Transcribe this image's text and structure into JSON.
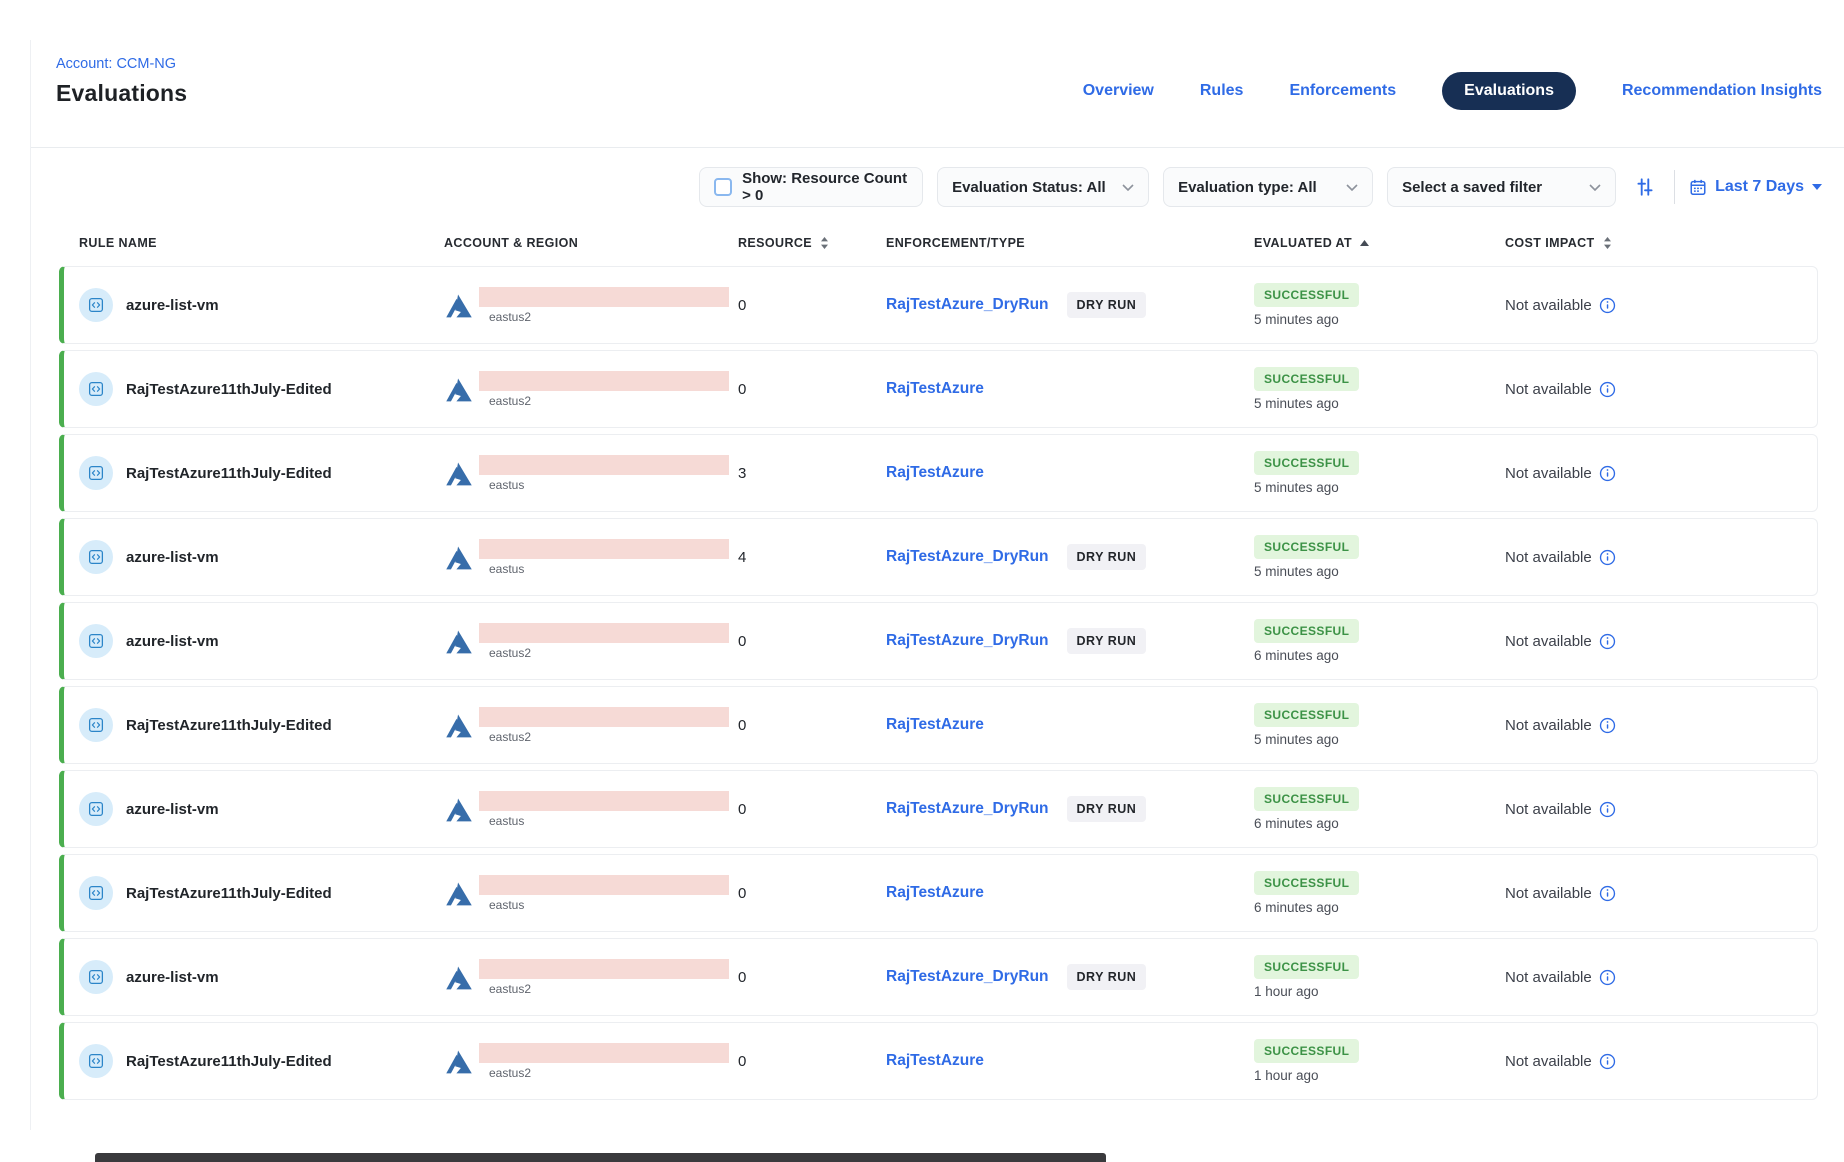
{
  "header": {
    "account_label": "Account: CCM-NG",
    "page_title": "Evaluations",
    "nav": [
      {
        "label": "Overview",
        "active": false
      },
      {
        "label": "Rules",
        "active": false
      },
      {
        "label": "Enforcements",
        "active": false
      },
      {
        "label": "Evaluations",
        "active": true
      },
      {
        "label": "Recommendation Insights",
        "active": false
      }
    ]
  },
  "filters": {
    "resource_count_label": "Show: Resource Count > 0",
    "resource_count_checked": false,
    "evaluation_status": "Evaluation Status: All",
    "evaluation_type": "Evaluation type: All",
    "saved_filter_placeholder": "Select a saved filter",
    "date_range": "Last 7 Days"
  },
  "table": {
    "columns": [
      {
        "label": "RULE NAME",
        "sort": null
      },
      {
        "label": "ACCOUNT & REGION",
        "sort": null
      },
      {
        "label": "RESOURCE",
        "sort": "both"
      },
      {
        "label": "ENFORCEMENT/TYPE",
        "sort": null
      },
      {
        "label": "EVALUATED AT",
        "sort": "asc"
      },
      {
        "label": "COST IMPACT",
        "sort": "both"
      }
    ],
    "dry_run_label": "DRY RUN",
    "rows": [
      {
        "rule": "azure-list-vm",
        "region": "eastus2",
        "resources": "0",
        "enforcement": "RajTestAzure_DryRun",
        "dry_run": true,
        "status": "SUCCESSFUL",
        "evaluated": "5 minutes ago",
        "cost": "Not available"
      },
      {
        "rule": "RajTestAzure11thJuly-Edited",
        "region": "eastus2",
        "resources": "0",
        "enforcement": "RajTestAzure",
        "dry_run": false,
        "status": "SUCCESSFUL",
        "evaluated": "5 minutes ago",
        "cost": "Not available"
      },
      {
        "rule": "RajTestAzure11thJuly-Edited",
        "region": "eastus",
        "resources": "3",
        "enforcement": "RajTestAzure",
        "dry_run": false,
        "status": "SUCCESSFUL",
        "evaluated": "5 minutes ago",
        "cost": "Not available"
      },
      {
        "rule": "azure-list-vm",
        "region": "eastus",
        "resources": "4",
        "enforcement": "RajTestAzure_DryRun",
        "dry_run": true,
        "status": "SUCCESSFUL",
        "evaluated": "5 minutes ago",
        "cost": "Not available"
      },
      {
        "rule": "azure-list-vm",
        "region": "eastus2",
        "resources": "0",
        "enforcement": "RajTestAzure_DryRun",
        "dry_run": true,
        "status": "SUCCESSFUL",
        "evaluated": "6 minutes ago",
        "cost": "Not available"
      },
      {
        "rule": "RajTestAzure11thJuly-Edited",
        "region": "eastus2",
        "resources": "0",
        "enforcement": "RajTestAzure",
        "dry_run": false,
        "status": "SUCCESSFUL",
        "evaluated": "5 minutes ago",
        "cost": "Not available"
      },
      {
        "rule": "azure-list-vm",
        "region": "eastus",
        "resources": "0",
        "enforcement": "RajTestAzure_DryRun",
        "dry_run": true,
        "status": "SUCCESSFUL",
        "evaluated": "6 minutes ago",
        "cost": "Not available"
      },
      {
        "rule": "RajTestAzure11thJuly-Edited",
        "region": "eastus",
        "resources": "0",
        "enforcement": "RajTestAzure",
        "dry_run": false,
        "status": "SUCCESSFUL",
        "evaluated": "6 minutes ago",
        "cost": "Not available"
      },
      {
        "rule": "azure-list-vm",
        "region": "eastus2",
        "resources": "0",
        "enforcement": "RajTestAzure_DryRun",
        "dry_run": true,
        "status": "SUCCESSFUL",
        "evaluated": "1 hour ago",
        "cost": "Not available"
      },
      {
        "rule": "RajTestAzure11thJuly-Edited",
        "region": "eastus2",
        "resources": "0",
        "enforcement": "RajTestAzure",
        "dry_run": false,
        "status": "SUCCESSFUL",
        "evaluated": "1 hour ago",
        "cost": "Not available"
      }
    ]
  },
  "icons": {
    "rule": "code-rule-icon",
    "cloud_provider": "azure-logo-icon",
    "info": "info-circle-icon",
    "calendar": "calendar-icon",
    "filter": "sliders-icon",
    "dropdown": "chevron-down-icon",
    "date_caret": "caret-down-icon",
    "sort": "sort-arrows-icon"
  },
  "colors": {
    "accent": "#2f6be6",
    "navy": "#172f54",
    "green": "#4bae4f",
    "success-bg": "#e2f5dd",
    "success-text": "#3c9246",
    "azure-blue": "#376daa",
    "redaction-pink": "#f6dad6"
  }
}
